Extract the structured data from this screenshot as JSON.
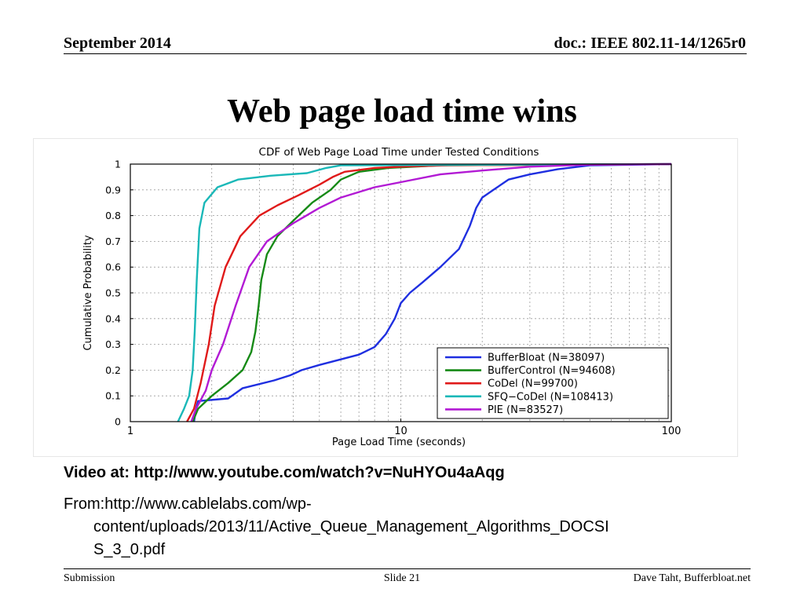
{
  "header": {
    "date": "September 2014",
    "doc": "doc.: IEEE 802.11-14/1265r0"
  },
  "slide": {
    "title": "Web page load time wins"
  },
  "body": {
    "video": "Video at: http://www.youtube.com/watch?v=NuHYOu4aAqg",
    "from_line1": "From:http://www.cablelabs.com/wp-",
    "from_line2": "content/uploads/2013/11/Active_Queue_Management_Algorithms_DOCSI",
    "from_line3": "S_3_0.pdf"
  },
  "footer": {
    "left": "Submission",
    "center": "Slide 21",
    "right": "Dave Taht, Bufferbloat.net"
  },
  "chart_data": {
    "type": "line",
    "title": "CDF of Web Page Load Time under Tested Conditions",
    "xlabel": "Page Load Time (seconds)",
    "ylabel": "Cumulative Probability",
    "x_scale": "log",
    "xlim": [
      1,
      100
    ],
    "ylim": [
      0,
      1
    ],
    "x_ticks": [
      1,
      10,
      100
    ],
    "x_tick_labels": [
      "1",
      "10",
      "100"
    ],
    "y_ticks": [
      0,
      0.1,
      0.2,
      0.3,
      0.4,
      0.5,
      0.6,
      0.7,
      0.8,
      0.9,
      1
    ],
    "y_tick_labels": [
      "0",
      "0.1",
      "0.2",
      "0.3",
      "0.4",
      "0.5",
      "0.6",
      "0.7",
      "0.8",
      "0.9",
      "1"
    ],
    "grid": true,
    "legend_position": "bottom-right",
    "series": [
      {
        "name": "BufferBloat (N=38097)",
        "color": "#1f2fe0",
        "points": [
          [
            1.72,
            0
          ],
          [
            1.75,
            0.05
          ],
          [
            1.78,
            0.08
          ],
          [
            2.3,
            0.09
          ],
          [
            2.6,
            0.13
          ],
          [
            3.4,
            0.16
          ],
          [
            3.9,
            0.18
          ],
          [
            4.3,
            0.2
          ],
          [
            5,
            0.22
          ],
          [
            7,
            0.26
          ],
          [
            8,
            0.29
          ],
          [
            8.8,
            0.34
          ],
          [
            9.5,
            0.4
          ],
          [
            10,
            0.46
          ],
          [
            10.8,
            0.5
          ],
          [
            12,
            0.54
          ],
          [
            14,
            0.6
          ],
          [
            16.4,
            0.67
          ],
          [
            18,
            0.76
          ],
          [
            19,
            0.83
          ],
          [
            20,
            0.87
          ],
          [
            22,
            0.9
          ],
          [
            25,
            0.94
          ],
          [
            30,
            0.96
          ],
          [
            38,
            0.98
          ],
          [
            50,
            0.995
          ],
          [
            100,
            1
          ]
        ]
      },
      {
        "name": "BufferControl (N=94608)",
        "color": "#168a16",
        "points": [
          [
            1.7,
            0
          ],
          [
            1.78,
            0.05
          ],
          [
            2,
            0.1
          ],
          [
            2.3,
            0.15
          ],
          [
            2.6,
            0.2
          ],
          [
            2.8,
            0.27
          ],
          [
            2.9,
            0.35
          ],
          [
            2.98,
            0.45
          ],
          [
            3.05,
            0.55
          ],
          [
            3.2,
            0.65
          ],
          [
            3.5,
            0.72
          ],
          [
            4,
            0.78
          ],
          [
            4.7,
            0.85
          ],
          [
            5.5,
            0.9
          ],
          [
            6,
            0.94
          ],
          [
            7,
            0.97
          ],
          [
            9,
            0.985
          ],
          [
            14,
            0.995
          ],
          [
            100,
            1
          ]
        ]
      },
      {
        "name": "CoDel (N=99700)",
        "color": "#e01a1a",
        "points": [
          [
            1.62,
            0
          ],
          [
            1.72,
            0.05
          ],
          [
            1.82,
            0.15
          ],
          [
            1.95,
            0.3
          ],
          [
            2.05,
            0.45
          ],
          [
            2.25,
            0.6
          ],
          [
            2.55,
            0.72
          ],
          [
            3,
            0.8
          ],
          [
            3.5,
            0.84
          ],
          [
            4.2,
            0.88
          ],
          [
            5,
            0.92
          ],
          [
            5.6,
            0.95
          ],
          [
            6.2,
            0.97
          ],
          [
            8,
            0.985
          ],
          [
            10,
            0.99
          ],
          [
            15,
            0.995
          ],
          [
            100,
            1
          ]
        ]
      },
      {
        "name": "SFQ−CoDel (N=108413)",
        "color": "#1ab8b8",
        "points": [
          [
            1.5,
            0
          ],
          [
            1.58,
            0.05
          ],
          [
            1.65,
            0.1
          ],
          [
            1.7,
            0.2
          ],
          [
            1.73,
            0.35
          ],
          [
            1.76,
            0.55
          ],
          [
            1.8,
            0.75
          ],
          [
            1.88,
            0.85
          ],
          [
            2.1,
            0.91
          ],
          [
            2.5,
            0.94
          ],
          [
            3.3,
            0.955
          ],
          [
            4.5,
            0.965
          ],
          [
            5.3,
            0.985
          ],
          [
            6,
            0.995
          ],
          [
            100,
            1
          ]
        ]
      },
      {
        "name": "PIE (N=83527)",
        "color": "#b21ad4",
        "points": [
          [
            1.68,
            0
          ],
          [
            1.75,
            0.05
          ],
          [
            1.9,
            0.12
          ],
          [
            2,
            0.2
          ],
          [
            2.2,
            0.3
          ],
          [
            2.45,
            0.45
          ],
          [
            2.75,
            0.6
          ],
          [
            3.2,
            0.7
          ],
          [
            4,
            0.77
          ],
          [
            5,
            0.83
          ],
          [
            6,
            0.87
          ],
          [
            8,
            0.91
          ],
          [
            10,
            0.93
          ],
          [
            14,
            0.96
          ],
          [
            20,
            0.975
          ],
          [
            30,
            0.99
          ],
          [
            50,
            0.998
          ],
          [
            100,
            1
          ]
        ]
      }
    ]
  }
}
